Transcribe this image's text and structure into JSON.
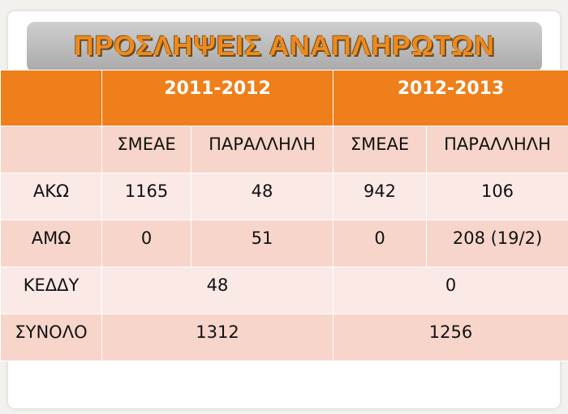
{
  "title": "ΠΡΟΣΛΗΨΕΙΣ ΑΝΑΠΛΗΡΩΤΩΝ",
  "table": {
    "years": [
      "2011-2012",
      "2012-2013"
    ],
    "subheader": [
      "ΣΜΕΑΕ",
      "ΠΑΡΑΛΛΗΛΗ",
      "ΣΜΕΑΕ",
      "ΠΑΡΑΛΛΗΛΗ"
    ],
    "rows": [
      {
        "label": "ΑΚΩ",
        "cells": [
          1165,
          48,
          942,
          106
        ]
      },
      {
        "label": "ΑΜΩ",
        "cells": [
          0,
          51,
          0,
          "208 (19/2)"
        ]
      },
      {
        "label": "ΚΕΔΔΥ",
        "cells": [
          48,
          0
        ]
      },
      {
        "label": "ΣΥΝΟΛΟ",
        "cells": [
          1312,
          1256
        ]
      }
    ]
  }
}
